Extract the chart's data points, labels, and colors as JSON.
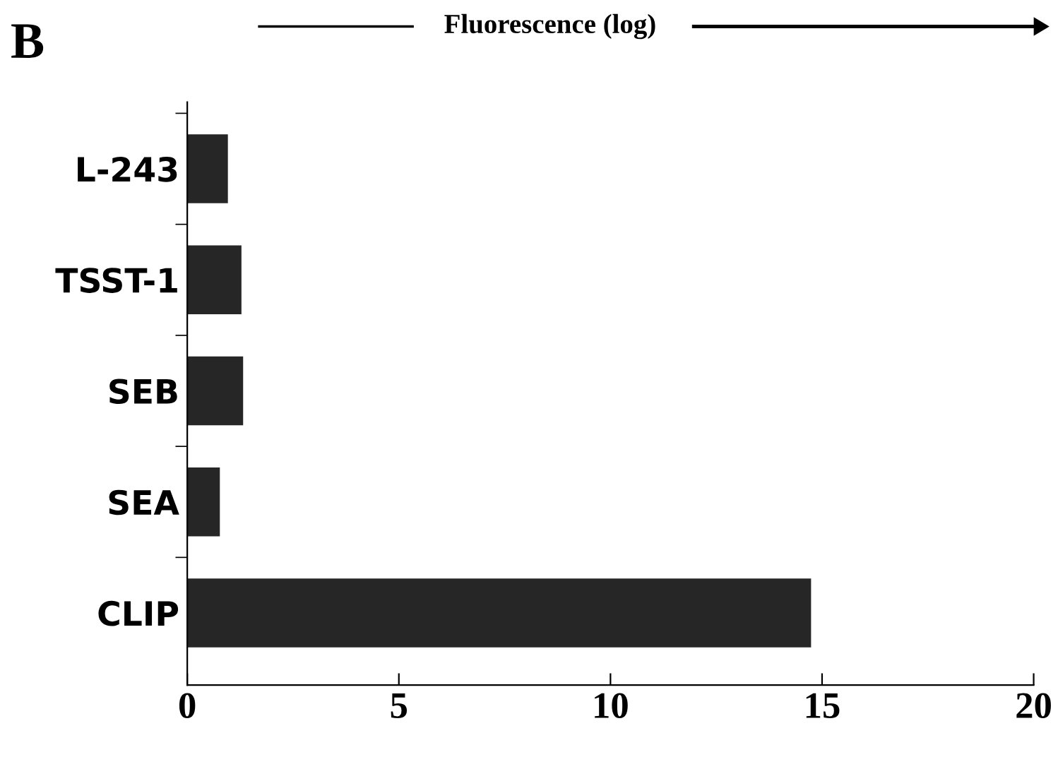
{
  "chart_data": {
    "type": "bar",
    "orientation": "horizontal",
    "title": "B",
    "xlabel": "Fluorescence (log)",
    "categories": [
      "L-243",
      "TSST-1",
      "SEB",
      "SEA",
      "CLIP"
    ],
    "values": [
      0.96,
      1.28,
      1.32,
      0.77,
      14.74
    ],
    "color": "#262626",
    "xlim": [
      0,
      20
    ],
    "xticks": [
      0,
      5,
      10,
      15,
      20
    ],
    "grid": false,
    "legend": false
  }
}
